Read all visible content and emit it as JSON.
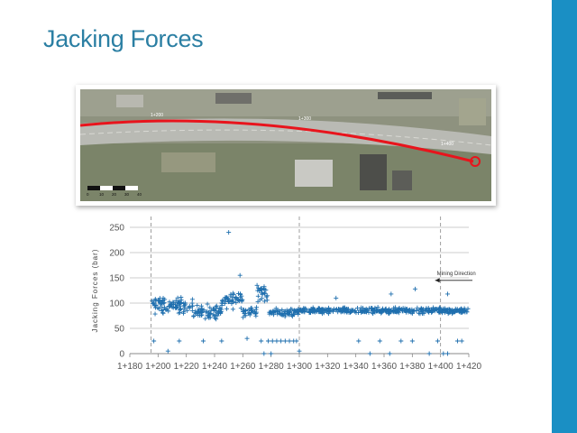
{
  "colors": {
    "title": "#2b7fa3",
    "accent_band": "#1a8fc4",
    "series": "#1f6fae",
    "route": "#e8141c",
    "grid": "#bdbdbd",
    "guide": "#888888"
  },
  "slide": {
    "title": "Jacking Forces"
  },
  "map": {
    "labels": [
      "1+200",
      "1+300",
      "1+400"
    ],
    "scale_labels": [
      "0",
      "10",
      "20",
      "30",
      "40"
    ]
  },
  "chart_data": {
    "type": "scatter",
    "title": "",
    "xlabel": "",
    "ylabel": "Jacking Forces (bar)",
    "x_tick_labels": [
      "1+180",
      "1+200",
      "1+220",
      "1+240",
      "1+260",
      "1+280",
      "1+300",
      "1+320",
      "1+340",
      "1+360",
      "1+380",
      "1+400",
      "1+420"
    ],
    "y_ticks": [
      0,
      50,
      100,
      150,
      200,
      250
    ],
    "xlim": [
      1180,
      1420
    ],
    "ylim": [
      0,
      250
    ],
    "grid": "horizontal",
    "annotation": {
      "text": "Mining Direction",
      "arrow": "left",
      "x": 1400,
      "y": 145
    },
    "guide_lines_x": [
      1195,
      1300,
      1400
    ],
    "series": [
      {
        "marker": "+",
        "segments": [
          {
            "x_start": 1195,
            "x_end": 1225,
            "mean": 95,
            "spread": 22
          },
          {
            "x_start": 1225,
            "x_end": 1245,
            "mean": 82,
            "spread": 20
          },
          {
            "x_start": 1245,
            "x_end": 1260,
            "mean": 108,
            "spread": 24
          },
          {
            "x_start": 1260,
            "x_end": 1270,
            "mean": 82,
            "spread": 15
          },
          {
            "x_start": 1270,
            "x_end": 1278,
            "mean": 120,
            "spread": 28
          },
          {
            "x_start": 1278,
            "x_end": 1300,
            "mean": 82,
            "spread": 10
          },
          {
            "x_start": 1300,
            "x_end": 1420,
            "mean": 85,
            "spread": 8
          }
        ],
        "outliers": [
          {
            "x": 1250,
            "y": 240
          },
          {
            "x": 1197,
            "y": 25
          },
          {
            "x": 1207,
            "y": 5
          },
          {
            "x": 1215,
            "y": 25
          },
          {
            "x": 1232,
            "y": 25
          },
          {
            "x": 1245,
            "y": 25
          },
          {
            "x": 1258,
            "y": 155
          },
          {
            "x": 1263,
            "y": 30
          },
          {
            "x": 1273,
            "y": 25
          },
          {
            "x": 1275,
            "y": 0
          },
          {
            "x": 1278,
            "y": 25
          },
          {
            "x": 1281,
            "y": 25
          },
          {
            "x": 1284,
            "y": 25
          },
          {
            "x": 1287,
            "y": 25
          },
          {
            "x": 1290,
            "y": 25
          },
          {
            "x": 1293,
            "y": 25
          },
          {
            "x": 1296,
            "y": 25
          },
          {
            "x": 1298,
            "y": 25
          },
          {
            "x": 1280,
            "y": 0
          },
          {
            "x": 1300,
            "y": 5
          },
          {
            "x": 1342,
            "y": 25
          },
          {
            "x": 1350,
            "y": 0
          },
          {
            "x": 1357,
            "y": 25
          },
          {
            "x": 1364,
            "y": 0
          },
          {
            "x": 1372,
            "y": 25
          },
          {
            "x": 1380,
            "y": 25
          },
          {
            "x": 1392,
            "y": 0
          },
          {
            "x": 1398,
            "y": 25
          },
          {
            "x": 1402,
            "y": 0
          },
          {
            "x": 1405,
            "y": 0
          },
          {
            "x": 1412,
            "y": 25
          },
          {
            "x": 1415,
            "y": 25
          },
          {
            "x": 1365,
            "y": 118
          },
          {
            "x": 1382,
            "y": 128
          },
          {
            "x": 1326,
            "y": 110
          },
          {
            "x": 1405,
            "y": 118
          }
        ]
      }
    ]
  }
}
